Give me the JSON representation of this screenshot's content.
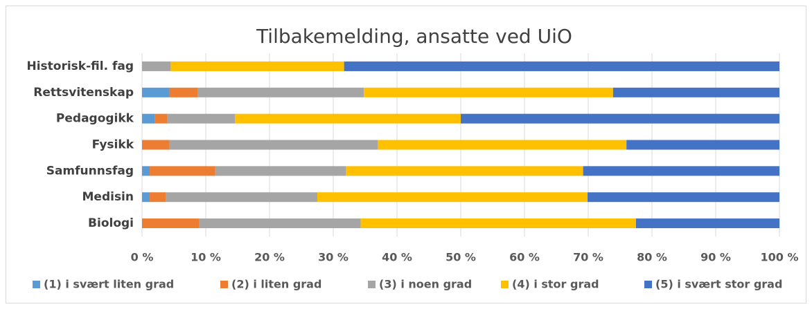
{
  "chart_data": {
    "type": "stacked_barh",
    "title": "Tilbakemelding, ansatte ved UiO",
    "categories": [
      "Historisk-fil. fag",
      "Rettsvitenskap",
      "Pedagogikk",
      "Fysikk",
      "Samfunnsfag",
      "Medisin",
      "Biologi"
    ],
    "series": [
      {
        "name": "(1) i svært liten grad",
        "color": "#5b9bd5",
        "values": [
          0,
          4.3,
          2.0,
          0,
          1.2,
          1.2,
          0
        ]
      },
      {
        "name": "(2) i liten grad",
        "color": "#ed7d31",
        "values": [
          0,
          4.4,
          2.0,
          4.3,
          10.3,
          2.5,
          9.0
        ]
      },
      {
        "name": "(3) i noen grad",
        "color": "#a5a5a5",
        "values": [
          4.5,
          26.1,
          10.6,
          32.7,
          20.5,
          23.8,
          25.3
        ]
      },
      {
        "name": "(4) i stor grad",
        "color": "#ffc000",
        "values": [
          27.2,
          39.1,
          35.4,
          39.0,
          37.2,
          42.4,
          43.2
        ]
      },
      {
        "name": "(5) i svært stor grad",
        "color": "#4472c4",
        "values": [
          68.3,
          26.1,
          50.0,
          24.0,
          30.8,
          30.1,
          22.5
        ]
      }
    ],
    "xlim": [
      0,
      100
    ],
    "xticks": [
      {
        "value": 0,
        "label": "0 %"
      },
      {
        "value": 10,
        "label": "10 %"
      },
      {
        "value": 20,
        "label": "20 %"
      },
      {
        "value": 30,
        "label": "30 %"
      },
      {
        "value": 40,
        "label": "40 %"
      },
      {
        "value": 50,
        "label": "50 %"
      },
      {
        "value": 60,
        "label": "60 %"
      },
      {
        "value": 70,
        "label": "70 %"
      },
      {
        "value": 80,
        "label": "80 %"
      },
      {
        "value": 90,
        "label": "90 %"
      },
      {
        "value": 100,
        "label": "100 %"
      }
    ],
    "grid": true,
    "legend": "bottom"
  }
}
